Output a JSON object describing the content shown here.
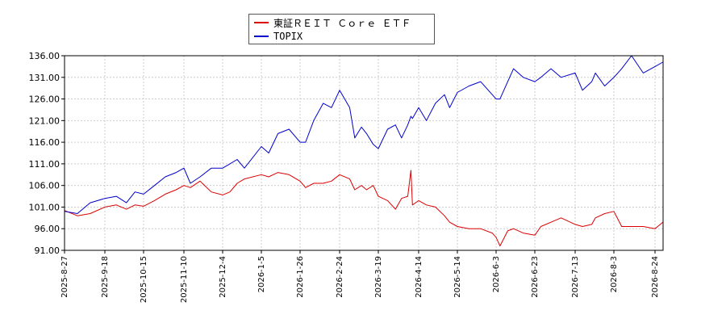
{
  "legend": [
    {
      "name": "東証ＲＥＩＴ Ｃｏｒｅ ＥＴＦ",
      "color": "#dd0000"
    },
    {
      "name": "TOPIX",
      "color": "#0000cc"
    }
  ],
  "chart_data": {
    "type": "line",
    "title": "",
    "xlabel": "",
    "ylabel": "",
    "grid": true,
    "legend_position": "top-center",
    "ylim": [
      91.0,
      136.0
    ],
    "yticks": [
      "136.00",
      "131.00",
      "126.00",
      "121.00",
      "116.00",
      "111.00",
      "106.00",
      "101.00",
      "96.00",
      "91.00"
    ],
    "xticks": [
      "2025-8-27",
      "2025-9-18",
      "2025-10-15",
      "2025-11-10",
      "2025-12-4",
      "2026-1-5",
      "2026-1-26",
      "2026-2-24",
      "2026-3-19",
      "2026-4-14",
      "2026-5-14",
      "2026-6-3",
      "2026-6-23",
      "2026-7-13",
      "2026-8-3",
      "2026-8-24"
    ],
    "series": [
      {
        "name": "東証ＲＥＩＴ Ｃｏｒｅ ＥＴＦ",
        "color": "#dd0000",
        "x": [
          "2025-8-27",
          "2025-9-3",
          "2025-9-10",
          "2025-9-18",
          "2025-9-26",
          "2025-10-3",
          "2025-10-9",
          "2025-10-15",
          "2025-10-22",
          "2025-10-29",
          "2025-11-5",
          "2025-11-10",
          "2025-11-14",
          "2025-11-20",
          "2025-11-27",
          "2025-12-4",
          "2025-12-10",
          "2025-12-16",
          "2025-12-22",
          "2026-1-5",
          "2026-1-9",
          "2026-1-14",
          "2026-1-20",
          "2026-1-26",
          "2026-1-30",
          "2026-2-5",
          "2026-2-12",
          "2026-2-18",
          "2026-2-24",
          "2026-3-2",
          "2026-3-5",
          "2026-3-9",
          "2026-3-12",
          "2026-3-16",
          "2026-3-19",
          "2026-3-25",
          "2026-3-30",
          "2026-4-3",
          "2026-4-7",
          "2026-4-9",
          "2026-4-10",
          "2026-4-14",
          "2026-4-20",
          "2026-4-27",
          "2026-5-4",
          "2026-5-8",
          "2026-5-14",
          "2026-5-20",
          "2026-5-26",
          "2026-6-1",
          "2026-6-3",
          "2026-6-5",
          "2026-6-9",
          "2026-6-12",
          "2026-6-17",
          "2026-6-23",
          "2026-6-26",
          "2026-7-1",
          "2026-7-6",
          "2026-7-13",
          "2026-7-17",
          "2026-7-22",
          "2026-7-24",
          "2026-7-29",
          "2026-8-3",
          "2026-8-7",
          "2026-8-12",
          "2026-8-18",
          "2026-8-24",
          "2026-8-28"
        ],
        "values": [
          100.2,
          99.0,
          99.5,
          101.0,
          101.5,
          100.5,
          101.5,
          101.2,
          102.5,
          104.0,
          105.0,
          106.0,
          105.5,
          107.0,
          104.5,
          103.8,
          104.5,
          106.5,
          107.5,
          108.5,
          108.0,
          109.0,
          108.5,
          107.0,
          105.5,
          106.5,
          106.5,
          107.0,
          108.5,
          107.5,
          105.0,
          106.0,
          105.0,
          106.0,
          103.5,
          102.5,
          100.5,
          103.0,
          103.5,
          109.5,
          101.5,
          102.5,
          101.5,
          101.0,
          99.0,
          97.5,
          96.5,
          96.0,
          96.0,
          95.0,
          94.0,
          92.0,
          95.5,
          96.0,
          95.0,
          94.5,
          96.5,
          97.5,
          98.5,
          97.0,
          96.5,
          97.0,
          98.5,
          99.5,
          100.0,
          96.5,
          96.5,
          96.5,
          96.0,
          97.5
        ]
      },
      {
        "name": "TOPIX",
        "color": "#0000cc",
        "x": [
          "2025-8-27",
          "2025-9-3",
          "2025-9-10",
          "2025-9-18",
          "2025-9-26",
          "2025-10-3",
          "2025-10-9",
          "2025-10-15",
          "2025-10-22",
          "2025-10-29",
          "2025-11-5",
          "2025-11-10",
          "2025-11-14",
          "2025-11-20",
          "2025-11-27",
          "2025-12-4",
          "2025-12-10",
          "2025-12-16",
          "2025-12-22",
          "2026-1-5",
          "2026-1-9",
          "2026-1-14",
          "2026-1-20",
          "2026-1-26",
          "2026-1-30",
          "2026-2-5",
          "2026-2-12",
          "2026-2-18",
          "2026-2-24",
          "2026-3-2",
          "2026-3-5",
          "2026-3-9",
          "2026-3-12",
          "2026-3-16",
          "2026-3-19",
          "2026-3-25",
          "2026-3-30",
          "2026-4-3",
          "2026-4-7",
          "2026-4-9",
          "2026-4-10",
          "2026-4-14",
          "2026-4-20",
          "2026-4-27",
          "2026-5-4",
          "2026-5-8",
          "2026-5-14",
          "2026-5-20",
          "2026-5-26",
          "2026-6-1",
          "2026-6-3",
          "2026-6-5",
          "2026-6-9",
          "2026-6-12",
          "2026-6-17",
          "2026-6-23",
          "2026-6-26",
          "2026-7-1",
          "2026-7-6",
          "2026-7-13",
          "2026-7-17",
          "2026-7-22",
          "2026-7-24",
          "2026-7-29",
          "2026-8-3",
          "2026-8-7",
          "2026-8-12",
          "2026-8-18",
          "2026-8-24",
          "2026-8-28"
        ],
        "values": [
          100.0,
          99.5,
          102.0,
          103.0,
          103.5,
          102.0,
          104.5,
          104.0,
          106.0,
          108.0,
          109.0,
          110.0,
          106.5,
          108.0,
          110.0,
          110.0,
          111.0,
          112.0,
          110.0,
          115.0,
          113.5,
          118.0,
          119.0,
          116.0,
          116.0,
          121.0,
          125.0,
          124.0,
          128.0,
          124.0,
          117.0,
          119.5,
          118.0,
          115.5,
          114.5,
          119.0,
          120.0,
          117.0,
          120.0,
          122.0,
          121.5,
          124.0,
          121.0,
          125.0,
          127.0,
          124.0,
          127.5,
          129.0,
          130.0,
          127.0,
          126.0,
          126.0,
          130.0,
          133.0,
          131.0,
          130.0,
          131.0,
          133.0,
          131.0,
          132.0,
          128.0,
          130.0,
          132.0,
          129.0,
          131.0,
          133.0,
          136.0,
          132.0,
          133.5,
          134.5
        ]
      }
    ]
  }
}
